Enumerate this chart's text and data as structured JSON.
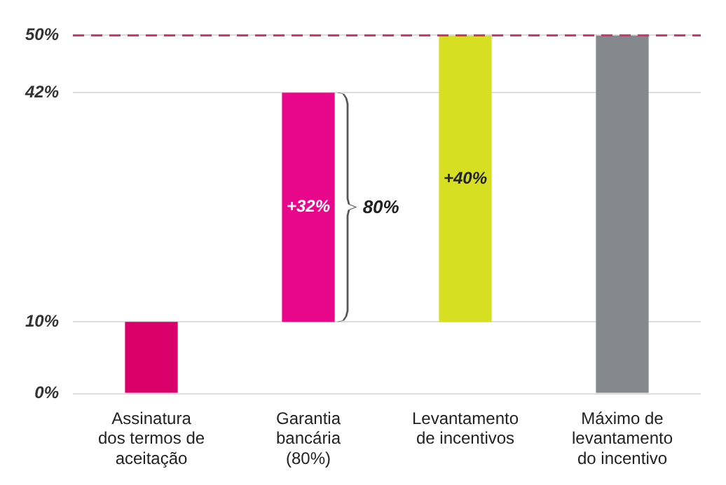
{
  "chart_data": {
    "type": "bar",
    "categories": [
      "Assinatura dos termos de aceitação",
      "Garantia bancária (80%)",
      "Levantamento de incentivos",
      "Máximo de levantamento do incentivo"
    ],
    "values": [
      10,
      32,
      40,
      50
    ],
    "base": [
      0,
      10,
      10,
      0
    ],
    "colors": [
      "#d9006c",
      "#e8078a",
      "#d7df23",
      "#85888d"
    ],
    "value_labels": [
      null,
      "+32%",
      "+40%",
      null
    ],
    "ylim": [
      0,
      50
    ],
    "yticks": [
      {
        "value": 0,
        "label": "0%"
      },
      {
        "value": 10,
        "label": "10%"
      },
      {
        "value": 42,
        "label": "42%"
      },
      {
        "value": 50,
        "label": "50%"
      }
    ],
    "grid": "y",
    "ref_lines": [
      {
        "axis": "y",
        "value": 50,
        "color": "#d6336c",
        "line_style": "dashed"
      }
    ],
    "annotations": [
      "80%"
    ]
  }
}
